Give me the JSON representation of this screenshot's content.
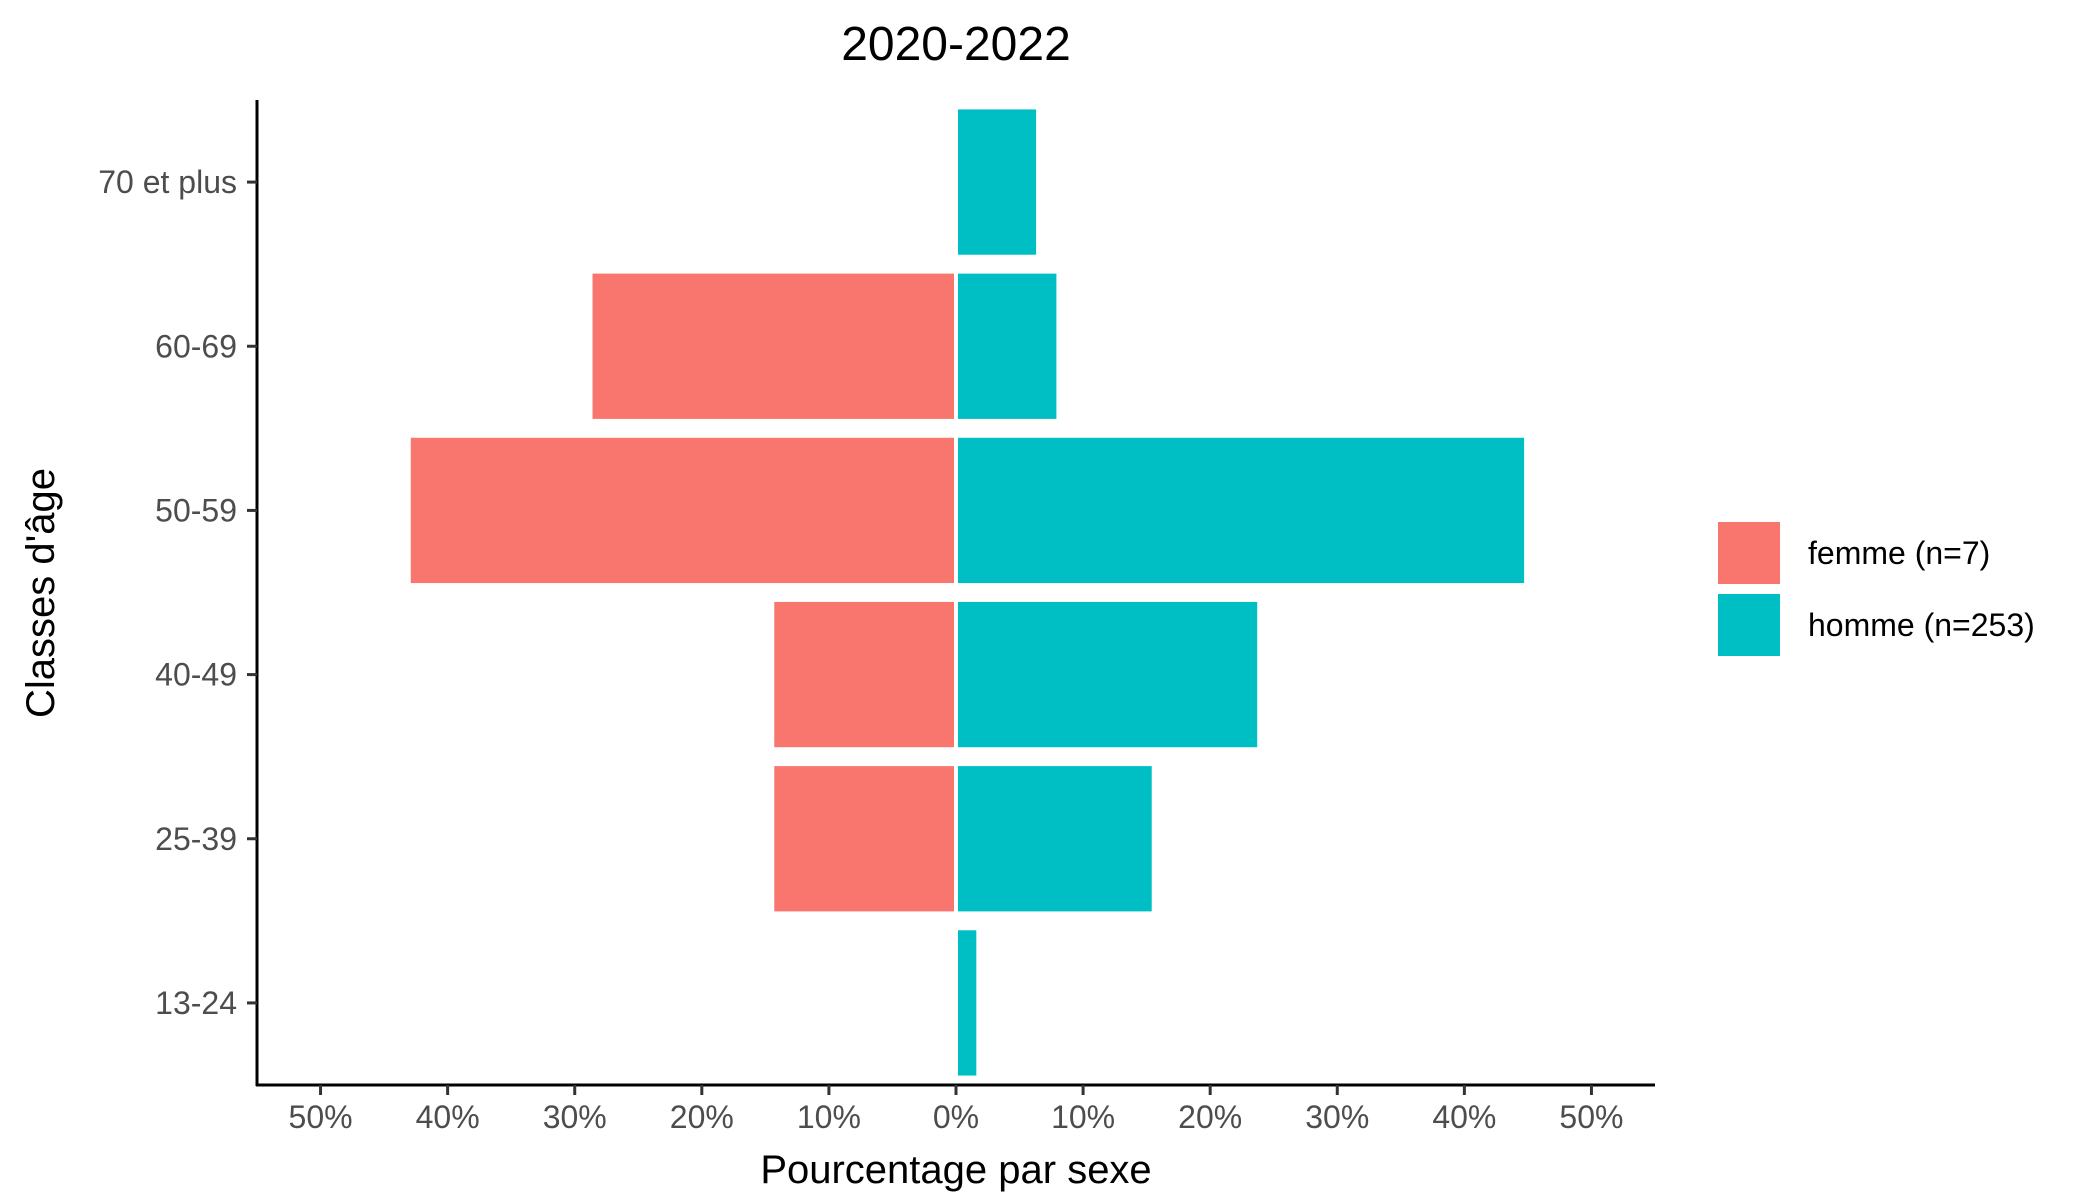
{
  "chart_data": {
    "type": "bar",
    "orientation": "horizontal",
    "layout": "population-pyramid",
    "title": "2020-2022",
    "xlabel": "Pourcentage par sexe",
    "ylabel": "Classes d'âge",
    "categories": [
      "13-24",
      "25-39",
      "40-49",
      "50-59",
      "60-69",
      "70 et plus"
    ],
    "series": [
      {
        "name": "femme (n=7)",
        "side": "left",
        "color": "#F8766D",
        "values": [
          0,
          14.3,
          14.3,
          42.9,
          28.6,
          0
        ]
      },
      {
        "name": "homme (n=253)",
        "side": "right",
        "color": "#00BFC4",
        "values": [
          1.6,
          15.4,
          23.7,
          44.7,
          7.9,
          6.3
        ]
      }
    ],
    "xlim": [
      -55,
      55
    ],
    "x_ticks": [
      -50,
      -40,
      -30,
      -20,
      -10,
      0,
      10,
      20,
      30,
      40,
      50
    ],
    "x_tick_labels": [
      "50%",
      "40%",
      "30%",
      "20%",
      "10%",
      "0%",
      "10%",
      "20%",
      "30%",
      "40%",
      "50%"
    ],
    "grid": false,
    "legend_position": "right"
  }
}
